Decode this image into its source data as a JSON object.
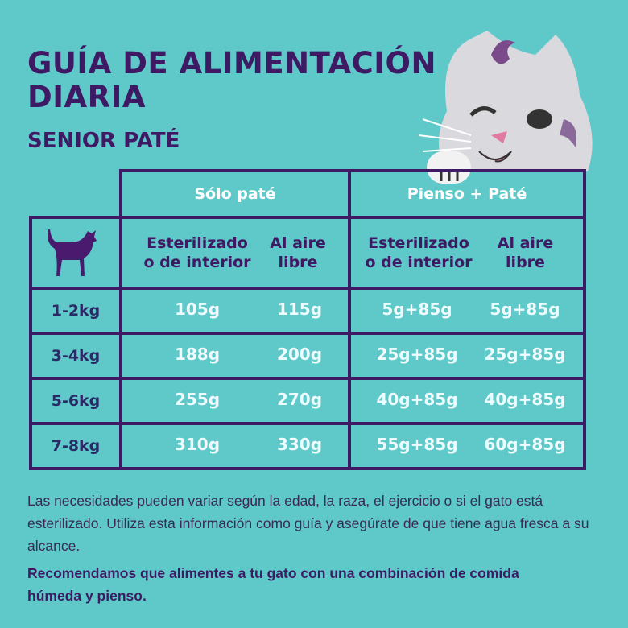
{
  "title": {
    "line1": "GUÍA DE ALIMENTACIÓN",
    "line2": "DIARIA"
  },
  "subtitle": "SENIOR PATÉ",
  "table": {
    "groups": [
      "Sólo paté",
      "Pienso + Paté"
    ],
    "subheaders": [
      {
        "l1": "Esterilizado",
        "l2": "o de interior"
      },
      {
        "l1": "Al aire",
        "l2": "libre"
      },
      {
        "l1": "Esterilizado",
        "l2": "o de interior"
      },
      {
        "l1": "Al aire",
        "l2": "libre"
      }
    ],
    "rows": [
      {
        "weight": "1-2kg",
        "values": [
          "105g",
          "115g",
          "5g+85g",
          "5g+85g"
        ]
      },
      {
        "weight": "3-4kg",
        "values": [
          "188g",
          "200g",
          "25g+85g",
          "25g+85g"
        ]
      },
      {
        "weight": "5-6kg",
        "values": [
          "255g",
          "270g",
          "40g+85g",
          "40g+85g"
        ]
      },
      {
        "weight": "7-8kg",
        "values": [
          "310g",
          "330g",
          "55g+85g",
          "60g+85g"
        ]
      }
    ]
  },
  "note": "Las necesidades pueden variar según la edad, la raza, el ejercicio o si el gato está esterilizado. Utiliza esta información como guía y asegúrate de que tiene agua fresca a su alcance.",
  "recommendation": "Recomendamos que alimentes a tu gato con una combinación de comida húmeda y pienso.",
  "colors": {
    "background": "#5fc8c9",
    "purple": "#3f1a64"
  }
}
